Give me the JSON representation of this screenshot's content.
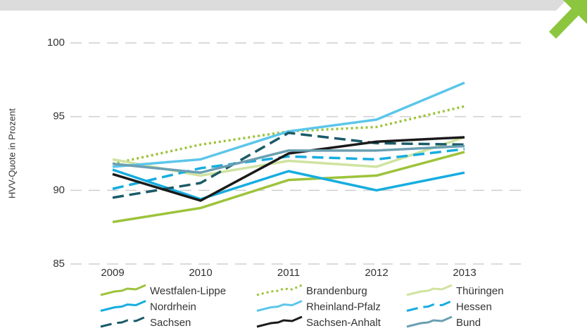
{
  "chart_data": {
    "type": "line",
    "y_label": "HVV-Quote in Prozent",
    "categories": [
      "2009",
      "2010",
      "2011",
      "2012",
      "2013"
    ],
    "ylim": [
      85,
      100
    ],
    "yticks": [
      85,
      90,
      95,
      100
    ],
    "grid": true,
    "series": [
      {
        "name": "Westfalen-Lippe",
        "color": "#9dc33b",
        "style": "solid",
        "values": [
          87.85,
          88.8,
          90.7,
          91.0,
          92.6
        ]
      },
      {
        "name": "Brandenburg",
        "color": "#9dc33b",
        "style": "dotted",
        "values": [
          91.8,
          93.1,
          94.0,
          94.3,
          95.7
        ]
      },
      {
        "name": "Thüringen",
        "color": "#cfe3a0",
        "style": "solid",
        "values": [
          92.1,
          91.0,
          92.0,
          91.6,
          93.6
        ]
      },
      {
        "name": "Nordrhein",
        "color": "#16ade0",
        "style": "solid",
        "values": [
          91.4,
          89.4,
          91.3,
          90.0,
          91.2
        ]
      },
      {
        "name": "Rheinland-Pfalz",
        "color": "#5cc6ea",
        "style": "solid",
        "values": [
          91.6,
          92.1,
          94.0,
          94.8,
          97.3
        ]
      },
      {
        "name": "Hessen",
        "color": "#16ade0",
        "style": "dashed",
        "values": [
          90.1,
          91.5,
          92.3,
          92.1,
          92.8
        ]
      },
      {
        "name": "Sachsen",
        "color": "#1a5a68",
        "style": "dashed",
        "values": [
          89.5,
          90.5,
          93.9,
          93.2,
          93.1
        ]
      },
      {
        "name": "Sachsen-Anhalt",
        "color": "#1a1a1a",
        "style": "solid",
        "values": [
          91.1,
          89.3,
          92.5,
          93.3,
          93.6
        ]
      },
      {
        "name": "Bund",
        "color": "#6a9fb2",
        "style": "solid",
        "values": [
          91.8,
          91.2,
          92.7,
          92.7,
          93.0
        ]
      }
    ]
  }
}
